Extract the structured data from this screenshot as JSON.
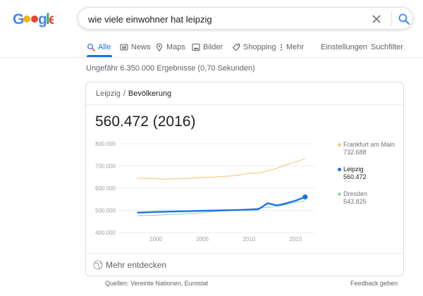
{
  "search": {
    "query": "wie viele einwohner hat leipzig"
  },
  "tabs": [
    {
      "label": "Alle",
      "icon": "search-icon",
      "active": true
    },
    {
      "label": "News",
      "icon": "newspaper-icon"
    },
    {
      "label": "Maps",
      "icon": "map-pin-icon"
    },
    {
      "label": "Bilder",
      "icon": "image-icon"
    },
    {
      "label": "Shopping",
      "icon": "tag-icon"
    },
    {
      "label": "Mehr",
      "icon": "more-vertical-icon"
    }
  ],
  "tools": {
    "settings": "Einstellungen",
    "filter": "Suchfilter"
  },
  "result_stats": "Ungefähr 6.350.000 Ergebnisse (0,70 Sekunden)",
  "card": {
    "breadcrumb_city": "Leipzig",
    "breadcrumb_sep": "/",
    "breadcrumb_topic": "Bevölkerung",
    "headline": "560.472 (2016)",
    "explore_more": "Mehr entdecken"
  },
  "colors": {
    "accent": "#1a73e8",
    "frankfurt": "#f9c98a",
    "leipzig": "#1a73e8",
    "dresden": "#a8d5b5"
  },
  "chart_data": {
    "type": "line",
    "title": "",
    "xlabel": "",
    "ylabel": "",
    "xlim": [
      1996,
      2017
    ],
    "ylim": [
      400000,
      800000
    ],
    "x_ticks": [
      2000,
      2005,
      2010,
      2015
    ],
    "x_tick_labels": [
      "2000",
      "2005",
      "2010",
      "2015"
    ],
    "y_ticks": [
      400000,
      500000,
      600000,
      700000,
      800000
    ],
    "y_tick_labels": [
      "400.000",
      "500.000",
      "600.000",
      "700.000",
      "800.000"
    ],
    "grid": true,
    "legend_position": "right",
    "series": [
      {
        "name": "Frankfurt am Main",
        "value_label": "732.688",
        "color": "#f9c98a",
        "highlight": false,
        "x": [
          1998,
          1999,
          2000,
          2001,
          2002,
          2003,
          2004,
          2005,
          2006,
          2007,
          2008,
          2009,
          2010,
          2011,
          2012,
          2013,
          2014,
          2015,
          2016
        ],
        "y": [
          644000,
          645000,
          643000,
          641000,
          643000,
          643000,
          646000,
          648000,
          650000,
          652000,
          655000,
          659000,
          668000,
          668000,
          678000,
          690000,
          705000,
          718000,
          732688
        ]
      },
      {
        "name": "Leipzig",
        "value_label": "560.472",
        "color": "#1a73e8",
        "highlight": true,
        "x": [
          1998,
          1999,
          2000,
          2001,
          2002,
          2003,
          2004,
          2005,
          2006,
          2007,
          2008,
          2009,
          2010,
          2011,
          2012,
          2013,
          2014,
          2015,
          2016
        ],
        "y": [
          490000,
          491000,
          493000,
          494000,
          495000,
          496000,
          497000,
          498000,
          499000,
          500000,
          501000,
          502000,
          503000,
          505000,
          532000,
          522000,
          532000,
          544000,
          560472
        ]
      },
      {
        "name": "Dresden",
        "value_label": "543.825",
        "color": "#a8d5b5",
        "highlight": false,
        "x": [
          1998,
          1999,
          2000,
          2001,
          2002,
          2003,
          2004,
          2005,
          2006,
          2007,
          2008,
          2009,
          2010,
          2011,
          2012,
          2013,
          2014,
          2015,
          2016
        ],
        "y": [
          476000,
          477000,
          478000,
          480000,
          482000,
          484000,
          486000,
          490000,
          494000,
          497000,
          500000,
          503000,
          507000,
          510000,
          513000,
          520000,
          525000,
          536000,
          543825
        ]
      }
    ]
  },
  "footer": {
    "sources": "Quellen: Vereinte Nationen, Eurostat",
    "feedback": "Feedback geben"
  }
}
